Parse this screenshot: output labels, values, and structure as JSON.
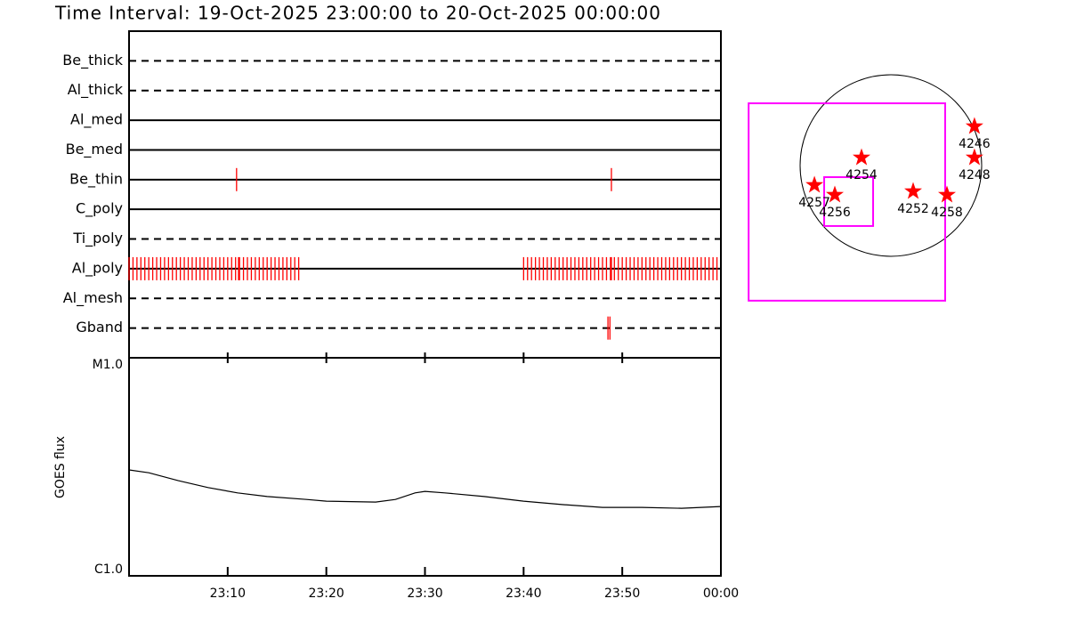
{
  "chart_data": [
    {
      "type": "timeline",
      "title": "Time Interval: 19-Oct-2025 23:00:00 to 20-Oct-2025 00:00:00",
      "xlim": [
        0,
        60
      ],
      "color": "#ff0000",
      "filters": [
        {
          "name": "Be_thick",
          "linestyle": "dashed",
          "times": []
        },
        {
          "name": "Al_thick",
          "linestyle": "dashed",
          "times": []
        },
        {
          "name": "Al_med",
          "linestyle": "solid",
          "times": []
        },
        {
          "name": "Be_med",
          "linestyle": "solid",
          "times": []
        },
        {
          "name": "Be_thin",
          "linestyle": "solid",
          "times": [
            10.9,
            48.9
          ]
        },
        {
          "name": "C_poly",
          "linestyle": "solid",
          "times": []
        },
        {
          "name": "Ti_poly",
          "linestyle": "dashed",
          "times": []
        },
        {
          "name": "Al_poly",
          "linestyle": "solid",
          "times": [
            0,
            0.4,
            0.8,
            1.2,
            1.6,
            2,
            2.4,
            2.8,
            3.2,
            3.6,
            4,
            4.4,
            4.8,
            5.2,
            5.6,
            6,
            6.4,
            6.8,
            7.2,
            7.6,
            8,
            8.4,
            8.8,
            9.2,
            9.6,
            10,
            10.4,
            10.8,
            11.1,
            11.2,
            11.6,
            12,
            12.4,
            12.8,
            13.2,
            13.6,
            14,
            14.4,
            14.8,
            15.2,
            15.6,
            16,
            16.4,
            16.8,
            17.2,
            40,
            40.4,
            40.8,
            41.2,
            41.6,
            42,
            42.4,
            42.8,
            43.2,
            43.6,
            44,
            44.4,
            44.8,
            45.2,
            45.6,
            46,
            46.4,
            46.8,
            47.2,
            47.6,
            48,
            48.4,
            48.8,
            48.9,
            49.2,
            49.6,
            50,
            50.4,
            50.8,
            51.2,
            51.6,
            52,
            52.4,
            52.8,
            53.2,
            53.6,
            54,
            54.4,
            54.8,
            55.2,
            55.6,
            56,
            56.4,
            56.8,
            57.2,
            57.6,
            58,
            58.4,
            58.8,
            59.2,
            59.6
          ]
        },
        {
          "name": "Al_mesh",
          "linestyle": "dashed",
          "times": []
        },
        {
          "name": "Gband",
          "linestyle": "dashed",
          "times": [
            48.55,
            48.75
          ]
        }
      ]
    },
    {
      "type": "line",
      "ylabel": "GOES flux",
      "xlim": [
        0,
        60
      ],
      "xticks": [
        {
          "value": 10,
          "label": "23:10"
        },
        {
          "value": 20,
          "label": "23:20"
        },
        {
          "value": 30,
          "label": "23:30"
        },
        {
          "value": 40,
          "label": "23:40"
        },
        {
          "value": 50,
          "label": "23:50"
        },
        {
          "value": 60,
          "label": "00:00"
        }
      ],
      "ylim": [
        1e-06,
        1e-05
      ],
      "log_y": true,
      "yticks": [
        {
          "value": 1e-06,
          "label": "C1.0"
        },
        {
          "value": 1e-05,
          "label": "M1.0"
        }
      ],
      "color": "#000000",
      "x": [
        0,
        2,
        5,
        8,
        11,
        14,
        18,
        20,
        25,
        27,
        29,
        30,
        32,
        36,
        40,
        44,
        48,
        52,
        56,
        60
      ],
      "values": [
        3.06e-06,
        2.97e-06,
        2.73e-06,
        2.54e-06,
        2.4e-06,
        2.31e-06,
        2.24e-06,
        2.2e-06,
        2.18e-06,
        2.24e-06,
        2.4e-06,
        2.44e-06,
        2.4e-06,
        2.31e-06,
        2.2e-06,
        2.12e-06,
        2.06e-06,
        2.06e-06,
        2.04e-06,
        2.08e-06
      ]
    },
    {
      "type": "map",
      "sun_radius": 970,
      "box_color": "#ff00ff",
      "star_color": "#ff0000",
      "fov_boxes": [
        {
          "x": [
            -1520,
            580
          ],
          "y": [
            -1444,
            665
          ]
        },
        {
          "x": [
            -713,
            -190
          ],
          "y": [
            -646,
            -124
          ]
        }
      ],
      "regions": [
        {
          "label": "4246",
          "x": 893,
          "y": 418
        },
        {
          "label": "4248",
          "x": 893,
          "y": 85
        },
        {
          "label": "4254",
          "x": -314,
          "y": 85
        },
        {
          "label": "4257",
          "x": -817,
          "y": -209
        },
        {
          "label": "4256",
          "x": -599,
          "y": -314
        },
        {
          "label": "4252",
          "x": 238,
          "y": -276
        },
        {
          "label": "4258",
          "x": 599,
          "y": -314
        }
      ]
    }
  ]
}
